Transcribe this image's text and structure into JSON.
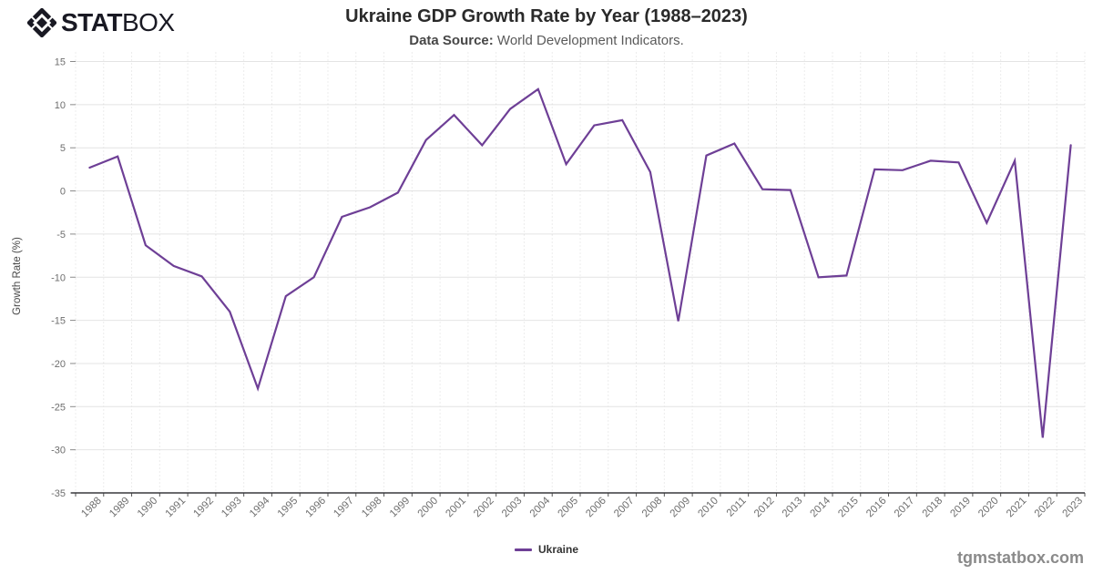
{
  "brand": {
    "icon": "diamond-logo-icon",
    "name_bold": "STAT",
    "name_light": "BOX",
    "color": "#191923"
  },
  "header": {
    "title": "Ukraine GDP Growth Rate by Year (1988–2023)",
    "subtitle_label": "Data Source:",
    "subtitle_text": " World Development Indicators."
  },
  "legend": {
    "label": "Ukraine"
  },
  "watermark": "tgmstatbox.com",
  "chart_data": {
    "type": "line",
    "title": "Ukraine GDP Growth Rate by Year (1988–2023)",
    "xlabel": "",
    "ylabel": "Growth Rate (%)",
    "ylim": [
      -35,
      15
    ],
    "yticks": [
      15,
      10,
      5,
      0,
      -5,
      -10,
      -15,
      -20,
      -25,
      -30,
      -35
    ],
    "grid": {
      "horizontal": "solid",
      "vertical": "dotted"
    },
    "legend_position": "bottom-center",
    "categories": [
      "1988",
      "1989",
      "1990",
      "1991",
      "1992",
      "1993",
      "1994",
      "1995",
      "1996",
      "1997",
      "1998",
      "1999",
      "2000",
      "2001",
      "2002",
      "2003",
      "2004",
      "2005",
      "2006",
      "2007",
      "2008",
      "2009",
      "2010",
      "2011",
      "2012",
      "2013",
      "2014",
      "2015",
      "2016",
      "2017",
      "2018",
      "2019",
      "2020",
      "2021",
      "2022",
      "2023"
    ],
    "series": [
      {
        "name": "Ukraine",
        "color": "#6e3f96",
        "values": [
          2.7,
          4.0,
          -6.3,
          -8.7,
          -9.9,
          -14.0,
          -22.9,
          -12.2,
          -10.0,
          -3.0,
          -1.9,
          -0.2,
          5.9,
          8.8,
          5.3,
          9.5,
          11.8,
          3.1,
          7.6,
          8.2,
          2.2,
          -15.1,
          4.1,
          5.5,
          0.2,
          0.1,
          -10.0,
          -9.8,
          2.5,
          2.4,
          3.5,
          3.3,
          -3.7,
          3.5,
          -28.6,
          5.3
        ]
      }
    ],
    "colors": {
      "grid_solid": "#e4e4e4",
      "grid_dotted": "#d9d9d9",
      "axis_line": "#38383d",
      "tick_label": "#6e6e6e",
      "axis_title": "#474747"
    }
  }
}
